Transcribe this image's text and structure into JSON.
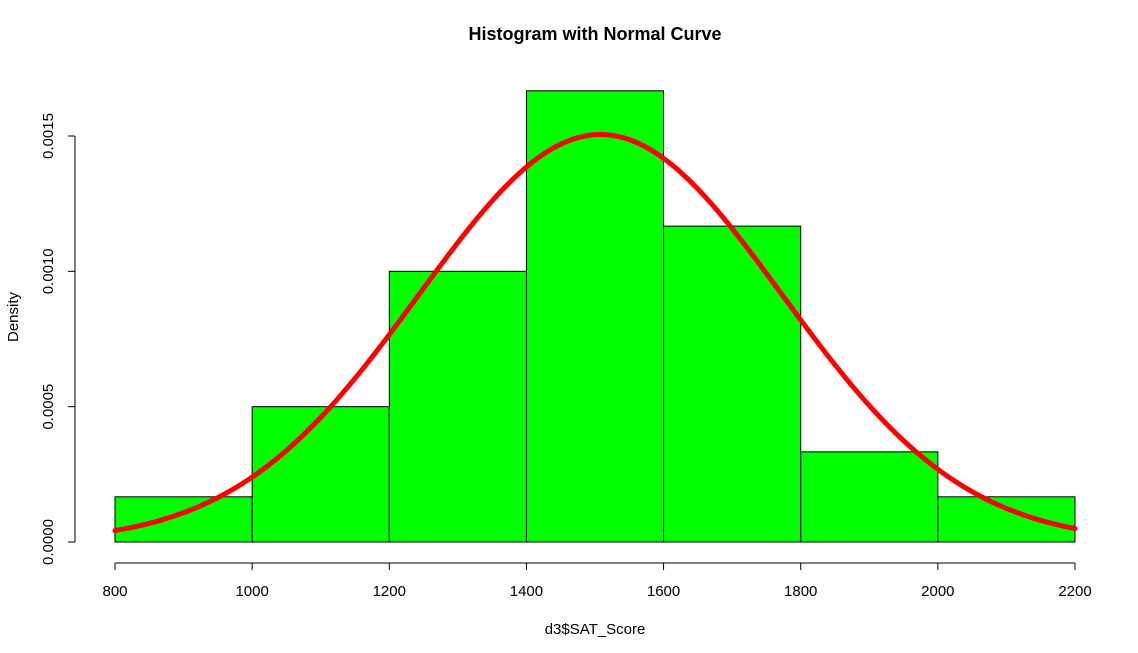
{
  "chart_data": {
    "type": "bar",
    "title": "Histogram with Normal Curve",
    "xlabel": "d3$SAT_Score",
    "ylabel": "Density",
    "xlim": [
      800,
      2200
    ],
    "ylim": [
      0,
      0.0015
    ],
    "x_ticks": [
      "800",
      "1000",
      "1200",
      "1400",
      "1600",
      "1800",
      "2000",
      "2200"
    ],
    "y_ticks": [
      "0.0000",
      "0.0005",
      "0.0010",
      "0.0015"
    ],
    "bins": [
      {
        "from": 800,
        "to": 1000,
        "density": 0.000167
      },
      {
        "from": 1000,
        "to": 1200,
        "density": 0.0005
      },
      {
        "from": 1200,
        "to": 1400,
        "density": 0.001
      },
      {
        "from": 1400,
        "to": 1600,
        "density": 0.001667
      },
      {
        "from": 1600,
        "to": 1800,
        "density": 0.001167
      },
      {
        "from": 1800,
        "to": 2000,
        "density": 0.000333
      },
      {
        "from": 2000,
        "to": 2200,
        "density": 0.000167
      }
    ],
    "normal_curve": {
      "mean": 1508,
      "sd": 265
    },
    "grid": false,
    "legend": "none",
    "colors": {
      "bar_fill": "#00ff00",
      "bar_stroke": "#000000",
      "curve": "#ff0000"
    }
  }
}
